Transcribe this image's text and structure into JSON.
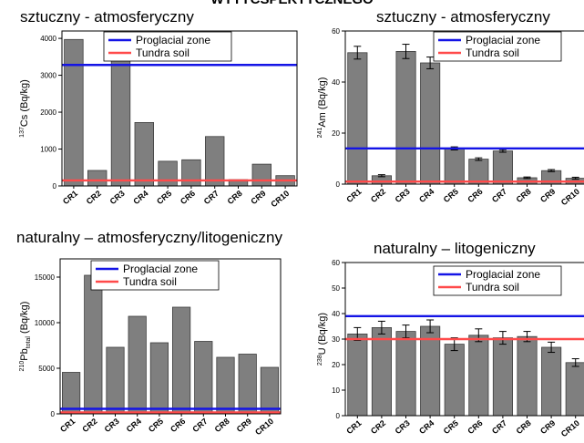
{
  "header": {
    "title": "WYTYCSPEKTYCZNEGO"
  },
  "sections": [
    {
      "title": "sztuczny - atmosferyczny"
    },
    {
      "title": "sztuczny - atmosferyczny"
    },
    {
      "title": "naturalny – atmosferyczny/litogeniczny"
    },
    {
      "title": "naturalny – litogeniczny"
    }
  ],
  "legend_entries": [
    {
      "label": "Proglacial zone",
      "color": "#1414e6"
    },
    {
      "label": "Tundra soil",
      "color": "#ff4a4a"
    }
  ],
  "colors": {
    "bar_fill": "#7f7f7f",
    "bar_stroke": "#3c3c3c",
    "axis": "#000000"
  },
  "chart_data": [
    {
      "type": "bar",
      "ylabel_sup": "137",
      "ylabel_main": "Cs (Bq/kg)",
      "ylabel_sub": "",
      "ylabel_after": "",
      "categories": [
        "CR1",
        "CR2",
        "CR3",
        "CR4",
        "CR5",
        "CR6",
        "CR7",
        "CR8",
        "CR9",
        "CR10"
      ],
      "values": [
        3970,
        420,
        3420,
        1720,
        670,
        710,
        1340,
        170,
        590,
        280
      ],
      "errors": [
        0,
        0,
        0,
        0,
        0,
        0,
        0,
        0,
        0,
        0
      ],
      "ylim": [
        0,
        4200
      ],
      "yticks": [
        0,
        1000,
        2000,
        3000,
        4000
      ],
      "reference_lines": [
        {
          "name": "Proglacial zone",
          "value": 3280
        },
        {
          "name": "Tundra soil",
          "value": 150
        }
      ],
      "legend": "top-right"
    },
    {
      "type": "bar",
      "ylabel_sup": "241",
      "ylabel_main": "Am (Bq/kg)",
      "ylabel_sub": "",
      "ylabel_after": "",
      "categories": [
        "CR1",
        "CR2",
        "CR3",
        "CR4",
        "CR5",
        "CR6",
        "CR7",
        "CR8",
        "CR9",
        "CR10"
      ],
      "values": [
        51.5,
        3.3,
        52,
        47.5,
        14,
        9.8,
        13,
        2.5,
        5.3,
        2.3
      ],
      "errors": [
        2.5,
        0.4,
        2.8,
        2.3,
        0.6,
        0.5,
        0.5,
        0.3,
        0.4,
        0.4
      ],
      "ylim": [
        0,
        60
      ],
      "yticks": [
        0,
        20,
        40,
        60
      ],
      "reference_lines": [
        {
          "name": "Proglacial zone",
          "value": 14
        },
        {
          "name": "Tundra soil",
          "value": 1
        }
      ],
      "legend": "top-right"
    },
    {
      "type": "bar",
      "ylabel_sup": "210",
      "ylabel_main": "Pb",
      "ylabel_sub": "total",
      "ylabel_after": " (Bq/kg)",
      "categories": [
        "CR1",
        "CR2",
        "CR3",
        "CR4",
        "CR5",
        "CR6",
        "CR7",
        "CR8",
        "CR9",
        "CR10"
      ],
      "values": [
        4550,
        15200,
        7300,
        10700,
        7800,
        11700,
        7950,
        6200,
        6550,
        5100
      ],
      "errors": [
        0,
        0,
        0,
        0,
        0,
        0,
        0,
        0,
        0,
        0
      ],
      "ylim": [
        0,
        17000
      ],
      "yticks": [
        0,
        5000,
        10000,
        15000
      ],
      "reference_lines": [
        {
          "name": "Proglacial zone",
          "value": 550
        },
        {
          "name": "Tundra soil",
          "value": 150
        }
      ],
      "legend": "top-right"
    },
    {
      "type": "bar",
      "ylabel_sup": "238",
      "ylabel_main": "U (Bq/kg)",
      "ylabel_sub": "",
      "ylabel_after": "",
      "categories": [
        "CR1",
        "CR2",
        "CR3",
        "CR4",
        "CR5",
        "CR6",
        "CR7",
        "CR8",
        "CR9",
        "CR10"
      ],
      "values": [
        32,
        34.5,
        33,
        35,
        28,
        31.5,
        30.5,
        31,
        26.8,
        20.8
      ],
      "errors": [
        2.5,
        2.5,
        2.5,
        2.5,
        2.5,
        2.5,
        2.5,
        2.0,
        2.0,
        1.5
      ],
      "ylim": [
        0,
        60
      ],
      "yticks": [
        0,
        10,
        20,
        30,
        40,
        50,
        60
      ],
      "reference_lines": [
        {
          "name": "Proglacial zone",
          "value": 39
        },
        {
          "name": "Tundra soil",
          "value": 30
        }
      ],
      "legend": "top-right"
    }
  ]
}
